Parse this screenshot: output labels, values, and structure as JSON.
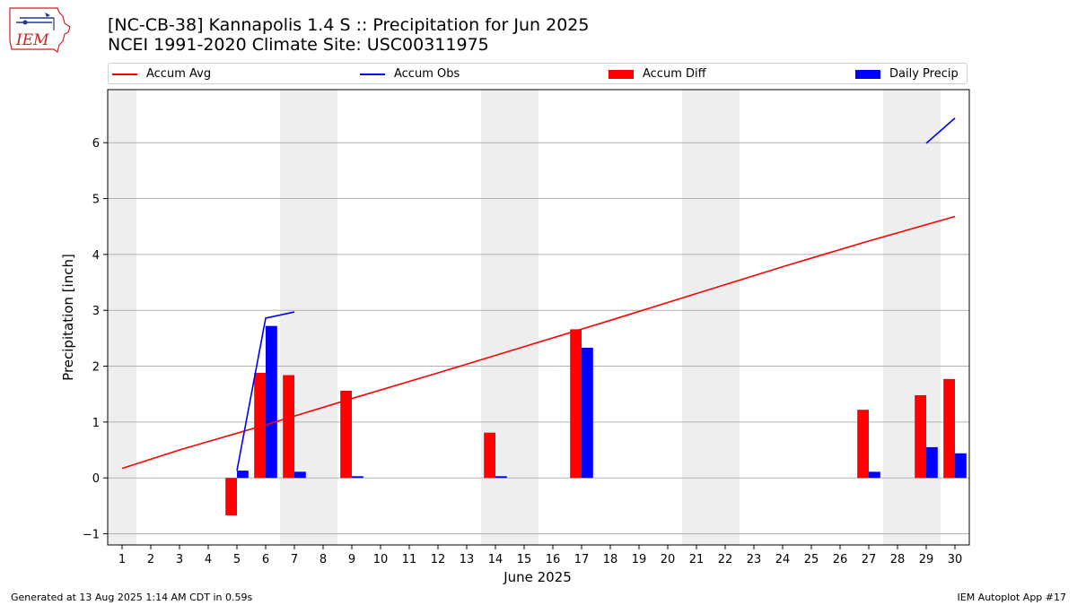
{
  "header": {
    "title_line1": "[NC-CB-38] Kannapolis 1.4 S :: Precipitation for Jun 2025",
    "title_line2": "NCEI 1991-2020 Climate Site: USC00311975"
  },
  "logo": {
    "text": "IEM",
    "icon": "iowa-state-outline-icon",
    "color": "#cc2222"
  },
  "footer": {
    "left": "Generated at 13 Aug 2025 1:14 AM CDT in 0.59s",
    "right": "IEM Autoplot App #17"
  },
  "colors": {
    "accum_avg": "#ff0000",
    "accum_obs": "#0000ff",
    "accum_diff": "#ff0000",
    "daily_precip": "#0000ff",
    "weekend_shade": "#eeeeee",
    "grid": "#b0b0b0"
  },
  "legend": [
    {
      "label": "Accum Avg",
      "kind": "line",
      "color": "#ff0000"
    },
    {
      "label": "Accum Obs",
      "kind": "line",
      "color": "#0000ff"
    },
    {
      "label": "Accum Diff",
      "kind": "bar",
      "color": "#ff0000"
    },
    {
      "label": "Daily Precip",
      "kind": "bar",
      "color": "#0000ff"
    }
  ],
  "chart_data": {
    "type": "bar",
    "title": "[NC-CB-38] Kannapolis 1.4 S :: Precipitation for Jun 2025",
    "subtitle": "NCEI 1991-2020 Climate Site: USC00311975",
    "xlabel": "June 2025",
    "ylabel": "Precipitation [inch]",
    "xlim": [
      0.5,
      30.5
    ],
    "ylim": [
      -1.2,
      6.95
    ],
    "yticks": [
      -1,
      0,
      1,
      2,
      3,
      4,
      5,
      6
    ],
    "xticks": [
      1,
      2,
      3,
      4,
      5,
      6,
      7,
      8,
      9,
      10,
      11,
      12,
      13,
      14,
      15,
      16,
      17,
      18,
      19,
      20,
      21,
      22,
      23,
      24,
      25,
      26,
      27,
      28,
      29,
      30
    ],
    "grid": "horizontal",
    "legend_position": "top",
    "shaded_day_ranges": [
      [
        0.5,
        1.5
      ],
      [
        6.5,
        8.5
      ],
      [
        13.5,
        15.5
      ],
      [
        20.5,
        22.5
      ],
      [
        27.5,
        29.5
      ]
    ],
    "series": [
      {
        "name": "Accum Avg",
        "type": "line",
        "x": [
          1,
          3,
          6,
          9,
          12,
          15,
          18,
          21,
          24,
          27,
          30
        ],
        "y": [
          0.17,
          0.5,
          0.95,
          1.42,
          1.88,
          2.35,
          2.82,
          3.3,
          3.78,
          4.24,
          4.68
        ]
      },
      {
        "name": "Accum Obs",
        "type": "line",
        "segments": [
          {
            "x": [
              5,
              6,
              7
            ],
            "y": [
              0.13,
              2.86,
              2.97
            ]
          },
          {
            "x": [
              29,
              30
            ],
            "y": [
              5.99,
              6.44
            ]
          }
        ]
      },
      {
        "name": "Accum Diff",
        "type": "bar",
        "x": [
          5,
          6,
          7,
          9,
          14,
          17,
          27,
          29,
          30
        ],
        "y": [
          -0.67,
          1.88,
          1.84,
          1.56,
          0.81,
          2.66,
          1.22,
          1.48,
          1.77
        ]
      },
      {
        "name": "Daily Precip",
        "type": "bar",
        "x": [
          5,
          6,
          7,
          9,
          14,
          17,
          27,
          29,
          30
        ],
        "y": [
          0.13,
          2.72,
          0.11,
          0.03,
          0.03,
          2.33,
          0.11,
          0.55,
          0.44
        ]
      }
    ]
  }
}
